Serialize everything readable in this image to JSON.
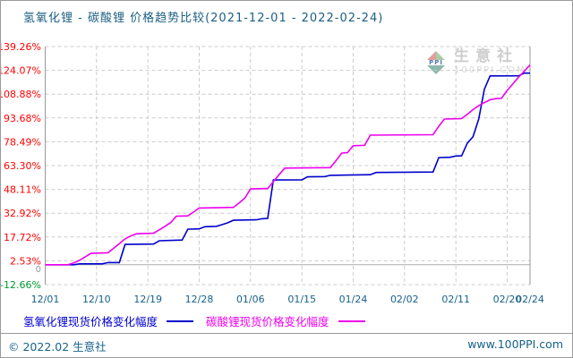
{
  "title": "氢氧化锂 - 碳酸锂 价格趋势比较(2021-12-01 - 2022-02-24)",
  "watermark": {
    "brand": "生意社",
    "site": "100PPI.COM",
    "logo_text": "PPI"
  },
  "footer": {
    "left": "© 2022.02 生意社",
    "right": "www.100PPI.com"
  },
  "chart_data": {
    "type": "line",
    "title": "氢氧化锂 - 碳酸锂 价格趋势比较",
    "date_start": "2021-12-01",
    "date_end": "2022-02-24",
    "unit": "%",
    "grid": {
      "dashed": true,
      "color": "#CCCCCC"
    },
    "legend_position": "bottom",
    "y_axis": {
      "labels": [
        "139.26%",
        "124.07%",
        "108.88%",
        "93.68%",
        "78.49%",
        "63.30%",
        "48.11%",
        "32.92%",
        "17.72%",
        "2.53%",
        "-12.66%"
      ],
      "values": [
        139.26,
        124.07,
        108.88,
        93.68,
        78.49,
        63.3,
        48.11,
        32.92,
        17.72,
        2.53,
        -12.66
      ],
      "range": [
        -12.66,
        139.26
      ],
      "color_positive": "#FF0000",
      "color_negative": "#009933",
      "zero_label": "0",
      "zero_label_color": "#999999"
    },
    "x_axis": {
      "tick_labels": [
        "12/01",
        "12/10",
        "12/19",
        "12/28",
        "01/06",
        "01/15",
        "01/24",
        "02/02",
        "02/11",
        "02/20",
        "02/24"
      ],
      "tick_days": [
        0,
        9,
        18,
        27,
        36,
        45,
        54,
        63,
        72,
        81,
        85
      ],
      "total_days": 85,
      "color": "#16628A"
    },
    "series": [
      {
        "id": "lithium-hydroxide",
        "name": "氢氧化锂现货价格变化幅度",
        "color": "#0000CC",
        "points": [
          [
            0,
            0
          ],
          [
            5,
            0
          ],
          [
            6,
            0.6
          ],
          [
            10,
            0.6
          ],
          [
            11,
            1.4
          ],
          [
            13,
            1.4
          ],
          [
            14,
            13.0
          ],
          [
            19,
            13.2
          ],
          [
            20,
            15.3
          ],
          [
            24,
            15.8
          ],
          [
            25,
            22.7
          ],
          [
            27,
            22.9
          ],
          [
            28,
            24.3
          ],
          [
            30,
            24.5
          ],
          [
            31,
            25.6
          ],
          [
            32,
            26.8
          ],
          [
            33,
            28.4
          ],
          [
            37,
            28.7
          ],
          [
            38,
            29.4
          ],
          [
            39,
            29.6
          ],
          [
            40,
            54.1
          ],
          [
            45,
            54.2
          ],
          [
            46,
            56.1
          ],
          [
            49,
            56.3
          ],
          [
            50,
            57.1
          ],
          [
            57,
            57.5
          ],
          [
            58,
            58.9
          ],
          [
            68,
            59.2
          ],
          [
            69,
            68.4
          ],
          [
            71,
            68.6
          ],
          [
            72,
            69.4
          ],
          [
            73,
            69.5
          ],
          [
            74,
            77.5
          ],
          [
            75,
            81.7
          ],
          [
            76,
            93.0
          ],
          [
            77,
            112.0
          ],
          [
            78,
            120.5
          ],
          [
            83,
            120.6
          ],
          [
            84,
            122.3
          ],
          [
            85,
            122.3
          ]
        ]
      },
      {
        "id": "lithium-carbonate",
        "name": "碳酸锂现货价格变化幅度",
        "color": "#EE00EE",
        "points": [
          [
            0,
            0
          ],
          [
            4,
            0
          ],
          [
            5,
            1.2
          ],
          [
            6,
            2.8
          ],
          [
            7,
            5.0
          ],
          [
            8,
            7.3
          ],
          [
            11,
            7.7
          ],
          [
            12,
            10.5
          ],
          [
            13,
            13.5
          ],
          [
            14,
            16.5
          ],
          [
            15,
            18.4
          ],
          [
            16,
            19.8
          ],
          [
            19,
            20.1
          ],
          [
            20,
            22.3
          ],
          [
            21,
            24.5
          ],
          [
            22,
            27.0
          ],
          [
            23,
            31.0
          ],
          [
            25,
            31.2
          ],
          [
            26,
            33.6
          ],
          [
            27,
            36.2
          ],
          [
            33,
            36.6
          ],
          [
            34,
            39.5
          ],
          [
            35,
            42.5
          ],
          [
            36,
            48.4
          ],
          [
            39,
            48.7
          ],
          [
            40,
            53.0
          ],
          [
            41,
            57.5
          ],
          [
            42,
            61.7
          ],
          [
            50,
            62.0
          ],
          [
            51,
            66.5
          ],
          [
            52,
            71.3
          ],
          [
            53,
            71.5
          ],
          [
            54,
            76.0
          ],
          [
            56,
            76.2
          ],
          [
            57,
            82.7
          ],
          [
            68,
            83.0
          ],
          [
            69,
            88.4
          ],
          [
            70,
            93.0
          ],
          [
            73,
            93.3
          ],
          [
            74,
            96.0
          ],
          [
            75,
            99.0
          ],
          [
            76,
            101.5
          ],
          [
            77,
            103.5
          ],
          [
            78,
            105.3
          ],
          [
            79,
            106.0
          ],
          [
            80,
            106.2
          ],
          [
            81,
            111.3
          ],
          [
            82,
            115.5
          ],
          [
            83,
            119.8
          ],
          [
            84,
            123.5
          ],
          [
            85,
            127.5
          ]
        ]
      }
    ]
  }
}
